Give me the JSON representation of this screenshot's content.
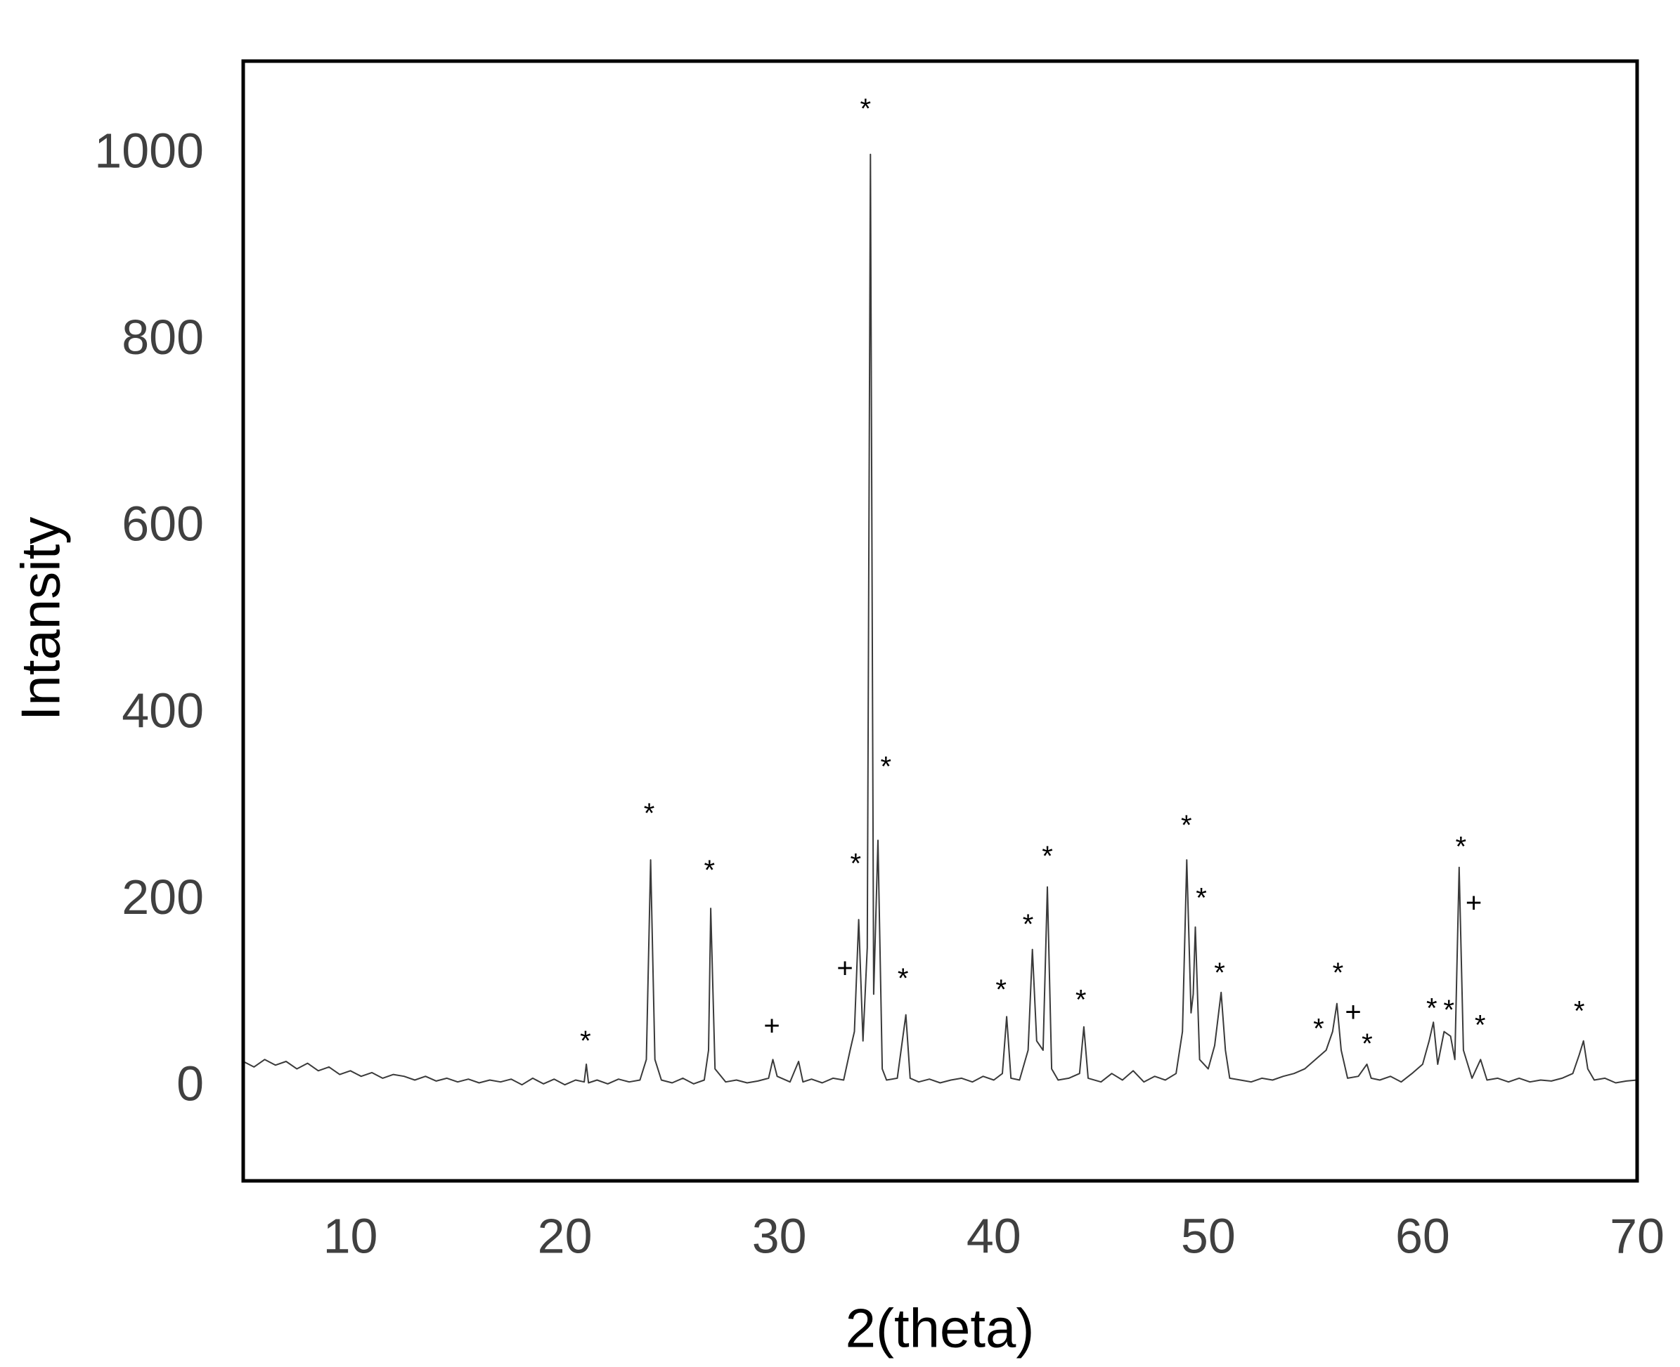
{
  "chart_data": {
    "type": "line",
    "x_label": "2(theta)",
    "y_label": "Intansity",
    "xlim": [
      5,
      70
    ],
    "ylim": [
      -100,
      1100
    ],
    "xticks": [
      10,
      20,
      30,
      40,
      50,
      60,
      70
    ],
    "yticks": [
      0,
      200,
      400,
      600,
      800,
      1000
    ],
    "grid": false,
    "series": [
      {
        "color": "#3a3a3a",
        "x": [
          5,
          5.5,
          6,
          6.5,
          7,
          7.5,
          8,
          8.5,
          9,
          9.5,
          10,
          10.5,
          11,
          11.5,
          12,
          12.5,
          13,
          13.5,
          14,
          14.5,
          15,
          15.5,
          16,
          16.5,
          17,
          17.5,
          18,
          18.5,
          19,
          19.5,
          20,
          20.5,
          20.9,
          21.0,
          21.1,
          21.5,
          22,
          22.5,
          23,
          23.5,
          23.8,
          24.0,
          24.2,
          24.5,
          25,
          25.5,
          26,
          26.5,
          26.7,
          26.8,
          27.0,
          27.5,
          28,
          28.5,
          29,
          29.5,
          29.7,
          29.9,
          30.5,
          30.9,
          31.1,
          31.5,
          32,
          32.5,
          33,
          33.3,
          33.5,
          33.7,
          33.9,
          34.1,
          34.25,
          34.4,
          34.6,
          34.8,
          35,
          35.5,
          35.9,
          36.1,
          36.5,
          37,
          37.5,
          38,
          38.5,
          39,
          39.5,
          40,
          40.4,
          40.6,
          40.8,
          41.2,
          41.6,
          41.8,
          42.0,
          42.3,
          42.5,
          42.7,
          43,
          43.5,
          44,
          44.2,
          44.4,
          45,
          45.5,
          46,
          46.5,
          47,
          47.5,
          48,
          48.5,
          48.8,
          49.0,
          49.2,
          49.3,
          49.4,
          49.6,
          50,
          50.3,
          50.6,
          50.8,
          51,
          51.5,
          52,
          52.5,
          53,
          53.5,
          54,
          54.5,
          55,
          55.5,
          55.8,
          56.0,
          56.2,
          56.5,
          57,
          57.4,
          57.6,
          58,
          58.5,
          59,
          59.5,
          60,
          60.3,
          60.5,
          60.7,
          61.0,
          61.3,
          61.5,
          61.7,
          61.9,
          62.3,
          62.7,
          63,
          63.5,
          64,
          64.5,
          65,
          65.5,
          66,
          66.5,
          67,
          67.3,
          67.5,
          67.7,
          68,
          68.5,
          69,
          69.5,
          70
        ],
        "values": [
          28,
          22,
          30,
          24,
          28,
          20,
          26,
          18,
          22,
          14,
          18,
          12,
          16,
          10,
          14,
          12,
          8,
          12,
          7,
          10,
          6,
          9,
          5,
          8,
          6,
          9,
          3,
          10,
          4,
          9,
          3,
          8,
          6,
          25,
          5,
          8,
          4,
          9,
          6,
          8,
          30,
          244,
          30,
          8,
          5,
          10,
          4,
          8,
          40,
          192,
          20,
          6,
          8,
          5,
          7,
          10,
          30,
          12,
          6,
          28,
          6,
          9,
          5,
          10,
          8,
          40,
          60,
          180,
          50,
          150,
          1000,
          100,
          265,
          20,
          8,
          10,
          78,
          10,
          6,
          9,
          5,
          8,
          10,
          6,
          12,
          8,
          15,
          76,
          10,
          8,
          40,
          148,
          50,
          40,
          215,
          20,
          8,
          10,
          15,
          65,
          10,
          6,
          15,
          8,
          18,
          6,
          12,
          8,
          15,
          60,
          244,
          80,
          100,
          172,
          30,
          20,
          45,
          102,
          40,
          10,
          8,
          6,
          10,
          8,
          12,
          15,
          20,
          30,
          40,
          60,
          90,
          40,
          10,
          12,
          25,
          10,
          8,
          12,
          6,
          15,
          25,
          50,
          70,
          25,
          60,
          55,
          30,
          236,
          40,
          10,
          30,
          8,
          10,
          6,
          10,
          6,
          8,
          7,
          10,
          15,
          35,
          50,
          20,
          8,
          10,
          5,
          7,
          8
        ]
      }
    ],
    "annotations": [
      {
        "text": "*",
        "x": 20.96,
        "y": 48
      },
      {
        "text": "*",
        "x": 23.93,
        "y": 292
      },
      {
        "text": "*",
        "x": 26.74,
        "y": 231
      },
      {
        "text": "+",
        "x": 29.65,
        "y": 64
      },
      {
        "text": "+",
        "x": 33.06,
        "y": 126
      },
      {
        "text": "*",
        "x": 33.56,
        "y": 238
      },
      {
        "text": "*",
        "x": 34.02,
        "y": 1047
      },
      {
        "text": "*",
        "x": 34.97,
        "y": 342
      },
      {
        "text": "*",
        "x": 35.77,
        "y": 115
      },
      {
        "text": "*",
        "x": 40.34,
        "y": 103
      },
      {
        "text": "*",
        "x": 41.6,
        "y": 173
      },
      {
        "text": "*",
        "x": 42.5,
        "y": 246
      },
      {
        "text": "*",
        "x": 44.06,
        "y": 92
      },
      {
        "text": "*",
        "x": 48.98,
        "y": 279
      },
      {
        "text": "*",
        "x": 49.68,
        "y": 201
      },
      {
        "text": "*",
        "x": 50.53,
        "y": 121
      },
      {
        "text": "*",
        "x": 55.15,
        "y": 61
      },
      {
        "text": "*",
        "x": 56.05,
        "y": 121
      },
      {
        "text": "+",
        "x": 56.76,
        "y": 79
      },
      {
        "text": "*",
        "x": 57.41,
        "y": 45
      },
      {
        "text": "*",
        "x": 60.42,
        "y": 83
      },
      {
        "text": "*",
        "x": 61.22,
        "y": 81
      },
      {
        "text": "*",
        "x": 61.78,
        "y": 256
      },
      {
        "text": "+",
        "x": 62.38,
        "y": 196
      },
      {
        "text": "*",
        "x": 62.68,
        "y": 65
      },
      {
        "text": "*",
        "x": 67.3,
        "y": 80
      }
    ]
  }
}
